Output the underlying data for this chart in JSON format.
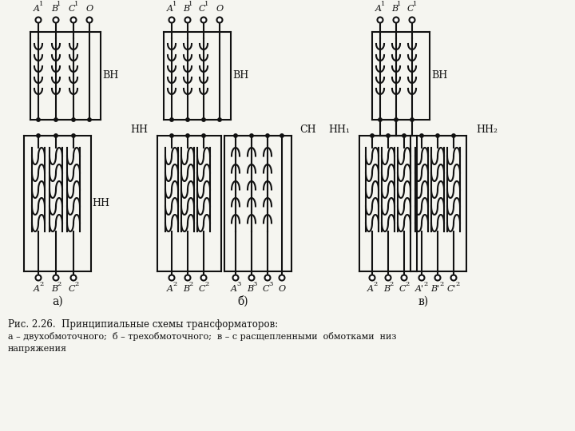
{
  "bg_color": "#f5f5f0",
  "line_color": "#111111",
  "caption_line1": "Рис. 2.26.  Принципиальные схемы трансформаторов:",
  "caption_line2": "а – двухобмоточного;  б – трехобмоточного;  в – с расщепленными  обмотками  низ",
  "caption_line3": "напряжения"
}
